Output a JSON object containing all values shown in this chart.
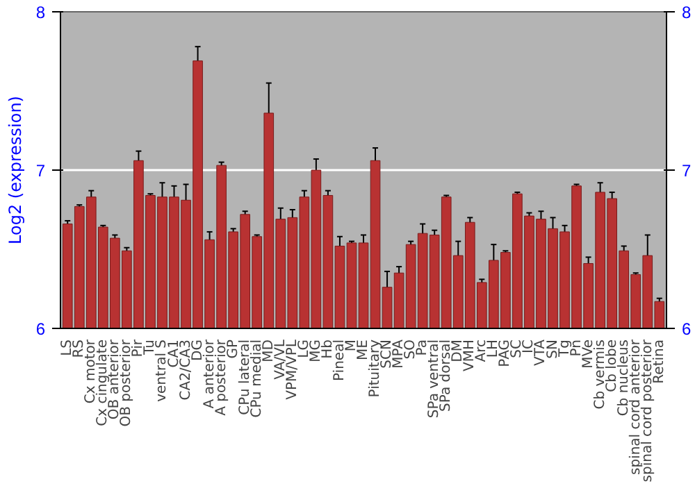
{
  "chart_data": {
    "type": "bar",
    "ylabel": "Log2 (expression)",
    "categories": [
      "LS",
      "RS",
      "Cx motor",
      "Cx cingulate",
      "OB anterior",
      "OB posterior",
      "Pir",
      "Tu",
      "ventral S",
      "CA1",
      "CA2/CA3",
      "DG",
      "A anterior",
      "A posterior",
      "GP",
      "CPu lateral",
      "CPu medial",
      "MD",
      "VA/VL",
      "VPM/VPL",
      "LG",
      "MG",
      "Hb",
      "Pineal",
      "M",
      "ME",
      "Pituitary",
      "SCN",
      "MPA",
      "SO",
      "Pa",
      "SPa ventral",
      "SPa dorsal",
      "DM",
      "VMH",
      "Arc",
      "LH",
      "PAG",
      "SC",
      "IC",
      "VTA",
      "SN",
      "Tg",
      "Pn",
      "MVe",
      "Cb vermis",
      "Cb lobe",
      "Cb nucleus",
      "spinal cord anterior",
      "spinal cord posterior",
      "Retina"
    ],
    "values": [
      6.66,
      6.77,
      6.83,
      6.64,
      6.57,
      6.49,
      7.06,
      6.84,
      6.83,
      6.83,
      6.81,
      7.69,
      6.56,
      7.03,
      6.61,
      6.72,
      6.58,
      7.36,
      6.69,
      6.7,
      6.83,
      7.0,
      6.84,
      6.52,
      6.54,
      6.54,
      7.06,
      6.26,
      6.35,
      6.53,
      6.6,
      6.59,
      6.83,
      6.46,
      6.67,
      6.29,
      6.43,
      6.48,
      6.85,
      6.71,
      6.69,
      6.63,
      6.61,
      6.9,
      6.41,
      6.86,
      6.82,
      6.49,
      6.34,
      6.46,
      6.17
    ],
    "errors": [
      0.02,
      0.01,
      0.04,
      0.01,
      0.02,
      0.02,
      0.06,
      0.01,
      0.09,
      0.07,
      0.1,
      0.09,
      0.05,
      0.02,
      0.02,
      0.02,
      0.01,
      0.19,
      0.07,
      0.05,
      0.04,
      0.07,
      0.03,
      0.06,
      0.01,
      0.05,
      0.08,
      0.1,
      0.04,
      0.02,
      0.06,
      0.03,
      0.01,
      0.09,
      0.03,
      0.02,
      0.1,
      0.01,
      0.01,
      0.02,
      0.05,
      0.07,
      0.04,
      0.01,
      0.04,
      0.06,
      0.04,
      0.03,
      0.01,
      0.13,
      0.02
    ],
    "color": "#b83232",
    "ylim": [
      6,
      8
    ],
    "yticks": [
      6,
      7,
      8
    ],
    "y2lim": [
      6,
      8
    ],
    "y2ticks": [
      6,
      7,
      8
    ],
    "grid": "y"
  }
}
